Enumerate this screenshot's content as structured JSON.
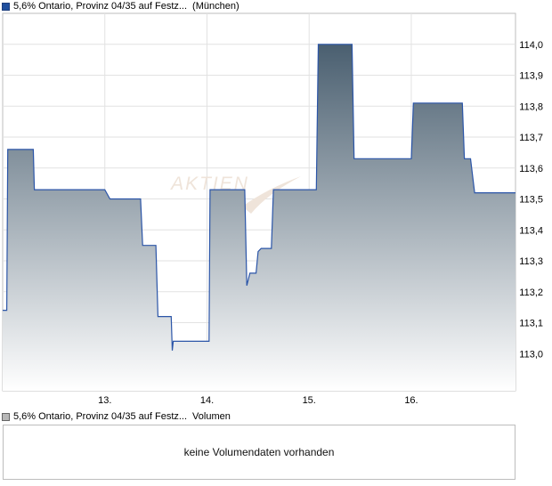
{
  "legend": {
    "price_series": "5,6% Ontario, Provinz 04/35 auf Festz...",
    "exchange": "(München)",
    "volume_series": "5,6% Ontario, Provinz 04/35 auf Festz...",
    "volume_label": "Volumen"
  },
  "watermark": "AKTIEN",
  "volume_panel": {
    "message": "keine Volumendaten vorhanden"
  },
  "colors": {
    "line": "#2b55a8",
    "fill_top": "#4a5f70",
    "fill_bottom": "#ffffff",
    "grid": "#e2e2e2",
    "border": "#bdbdbd"
  },
  "chart_data": {
    "type": "area",
    "title": "",
    "xlabel": "",
    "ylabel": "",
    "x_ticks": [
      "13.",
      "14.",
      "15.",
      "16."
    ],
    "y_ticks": [
      "113,0",
      "113,1",
      "113,2",
      "113,3",
      "113,4",
      "113,5",
      "113,6",
      "113,7",
      "113,8",
      "113,9",
      "114,0"
    ],
    "ylim": [
      112.88,
      114.1
    ],
    "y_axis_side": "right",
    "grid": true,
    "series": [
      {
        "values": [
          [
            12.0,
            113.14
          ],
          [
            12.04,
            113.14
          ],
          [
            12.05,
            113.66
          ],
          [
            12.3,
            113.66
          ],
          [
            12.31,
            113.53
          ],
          [
            13.0,
            113.53
          ],
          [
            13.05,
            113.5
          ],
          [
            13.35,
            113.5
          ],
          [
            13.37,
            113.35
          ],
          [
            13.5,
            113.35
          ],
          [
            13.52,
            113.12
          ],
          [
            13.65,
            113.12
          ],
          [
            13.66,
            113.01
          ],
          [
            13.67,
            113.04
          ],
          [
            14.02,
            113.04
          ],
          [
            14.03,
            113.53
          ],
          [
            14.37,
            113.53
          ],
          [
            14.39,
            113.22
          ],
          [
            14.42,
            113.26
          ],
          [
            14.48,
            113.26
          ],
          [
            14.5,
            113.33
          ],
          [
            14.53,
            113.34
          ],
          [
            14.63,
            113.34
          ],
          [
            14.65,
            113.53
          ],
          [
            15.07,
            113.53
          ],
          [
            15.09,
            114.0
          ],
          [
            15.42,
            114.0
          ],
          [
            15.44,
            113.63
          ],
          [
            16.0,
            113.63
          ],
          [
            16.02,
            113.81
          ],
          [
            16.5,
            113.81
          ],
          [
            16.52,
            113.63
          ],
          [
            16.58,
            113.63
          ],
          [
            16.62,
            113.52
          ],
          [
            17.02,
            113.52
          ]
        ]
      }
    ]
  }
}
